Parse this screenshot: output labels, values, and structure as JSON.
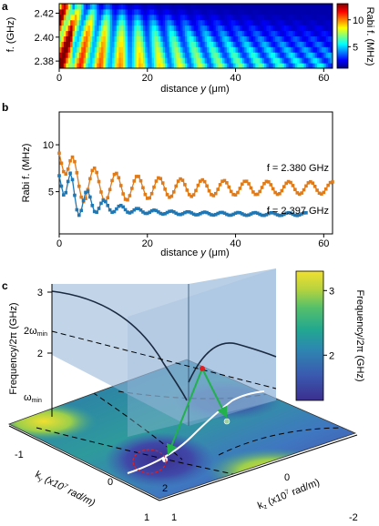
{
  "panel_labels": {
    "a": "a",
    "b": "b",
    "c": "c"
  },
  "colors": {
    "orange": "#e07b1a",
    "blue": "#1f77b4",
    "green": "#22b14c",
    "red": "#e02020",
    "jet": [
      "#00007f",
      "#0000ff",
      "#007fff",
      "#00ffff",
      "#7fff7f",
      "#ffff00",
      "#ff7f00",
      "#ff0000",
      "#7f0000"
    ],
    "viridis": [
      "#3b2f8f",
      "#3a5bb0",
      "#2c88b0",
      "#22a88f",
      "#56c06a",
      "#b7d33e",
      "#f0e030"
    ]
  },
  "chart_data": [
    {
      "type": "heatmap",
      "xlabel_prefix": "distance ",
      "xlabel_var": "y",
      "xlabel_unit": " (μm)",
      "ylabel": "f. (GHz)",
      "x_ticks": [
        0,
        20,
        40,
        60
      ],
      "y_ticks": [
        2.38,
        2.4,
        2.42
      ],
      "y_tick_labels": [
        "2.38",
        "2.40",
        "2.42"
      ],
      "xlim": [
        0,
        62
      ],
      "ylim": [
        2.374,
        2.428
      ],
      "colorbar": {
        "label": "Rabi f. (MHz)",
        "ticks": [
          5,
          10
        ],
        "range": [
          1,
          13
        ]
      }
    },
    {
      "type": "line",
      "xlabel_prefix": "distance ",
      "xlabel_var": "y",
      "xlabel_unit": " (μm)",
      "ylabel": "Rabi f. (MHz)",
      "x_ticks": [
        0,
        20,
        40,
        60
      ],
      "y_ticks": [
        5,
        10
      ],
      "xlim": [
        0,
        62
      ],
      "ylim": [
        0.5,
        13.5
      ],
      "series": [
        {
          "name": "f = 2.380 GHz",
          "x_start": 0,
          "x_end": 62,
          "x_step": 0.5,
          "period": 4.9,
          "baseline": 5.4,
          "base_decay": 2.2,
          "base_tau": 4,
          "amp": 2.0,
          "amp_tail": 0.6,
          "amp_tau": 16,
          "phase": 0.8
        },
        {
          "name": "f = 2.397 GHz",
          "x_start": 0,
          "x_end": 56,
          "x_step": 0.5,
          "period": 3.8,
          "baseline": 2.6,
          "base_decay": 2.6,
          "base_tau": 9,
          "amp": 3.8,
          "amp_tail": 0.15,
          "amp_tau": 5,
          "phase": 1.2
        }
      ]
    },
    {
      "type": "surface",
      "zlabel": "Frequency/2π (GHz)",
      "z_ticks": [
        "3",
        "2"
      ],
      "z_marks": [
        "2ω",
        "ω"
      ],
      "z_mark_sub": "min",
      "ky_label_main": "k",
      "ky_label_sub": "y",
      "ky_label_unit": " (x10",
      "ky_label_exp": "7",
      "ky_label_tail": " rad/m)",
      "kz_label_main": "k",
      "kz_label_sub": "z",
      "kz_label_unit": " (x10",
      "kz_label_exp": "7",
      "kz_label_tail": " rad/m)",
      "ky_ticks": [
        "-1",
        "0",
        "1"
      ],
      "kz_ticks": [
        "-2",
        "0",
        "1",
        "2"
      ],
      "colorbar": {
        "label": "Frequency/2π (GHz)",
        "ticks": [
          2,
          3
        ],
        "range": [
          1.3,
          3.3
        ]
      }
    }
  ]
}
